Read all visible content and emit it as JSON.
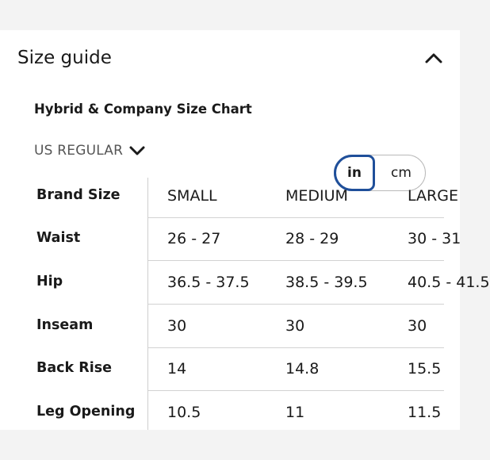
{
  "size_guide": {
    "title": "Size guide",
    "collapse_icon": "chevron-up-icon",
    "chart_title": "Hybrid & Company Size Chart",
    "region": "US REGULAR",
    "region_icon": "chevron-down-icon",
    "units": {
      "in": "in",
      "cm": "cm",
      "selected": "in",
      "accent_color": "#1f4f9a"
    },
    "table": {
      "header_label": "Brand Size",
      "columns": [
        "SMALL",
        "MEDIUM",
        "LARGE"
      ],
      "rows": [
        {
          "label": "Waist",
          "values": [
            "26 - 27",
            "28 - 29",
            "30 - 31"
          ]
        },
        {
          "label": "Hip",
          "values": [
            "36.5 - 37.5",
            "38.5 - 39.5",
            "40.5 - 41.5"
          ]
        },
        {
          "label": "Inseam",
          "values": [
            "30",
            "30",
            "30"
          ]
        },
        {
          "label": "Back Rise",
          "values": [
            "14",
            "14.8",
            "15.5"
          ]
        },
        {
          "label": "Leg Opening",
          "values": [
            "10.5",
            "11",
            "11.5"
          ]
        }
      ]
    }
  }
}
